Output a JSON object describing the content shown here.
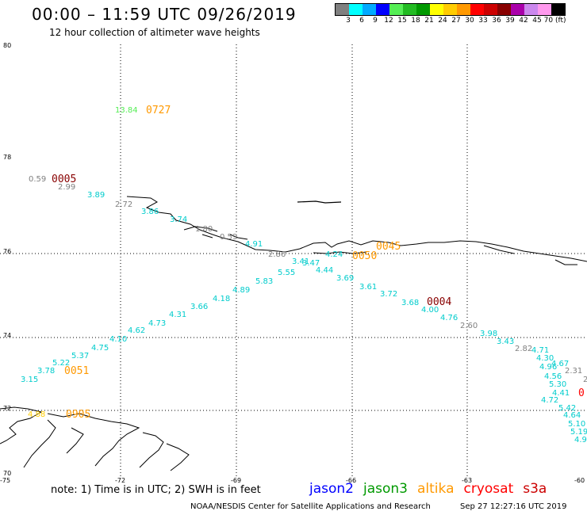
{
  "header": {
    "title": "00:00 – 11:59 UTC 09/26/2019",
    "subtitle": "12 hour collection of altimeter wave heights"
  },
  "colorbar": {
    "labels": [
      "3",
      "6",
      "9",
      "12",
      "15",
      "18",
      "21",
      "24",
      "27",
      "30",
      "33",
      "36",
      "39",
      "42",
      "45",
      "70 (ft)"
    ],
    "colors": [
      "#808080",
      "#00ffff",
      "#00aaff",
      "#0000ff",
      "#55ee55",
      "#22bb22",
      "#009900",
      "#ffff00",
      "#ffcc00",
      "#ff9900",
      "#ff0000",
      "#cc0000",
      "#880000",
      "#aa00aa",
      "#cc88ee",
      "#ff99ee",
      "#000000"
    ]
  },
  "map": {
    "lat_labels": [
      "80",
      "78",
      "76",
      "74",
      "72",
      "70"
    ],
    "lon_labels": [
      "-75",
      "-72",
      "-69",
      "-66",
      "-63",
      "-60"
    ],
    "time_labels": [
      {
        "text": "0727",
        "color": "#ff9900"
      },
      {
        "text": "0005",
        "color": "#880000"
      },
      {
        "text": "0045",
        "color": "#ff9900"
      },
      {
        "text": "0050",
        "color": "#ff9900"
      },
      {
        "text": "0004",
        "color": "#880000"
      },
      {
        "text": "0051",
        "color": "#ff9900"
      },
      {
        "text": "0905",
        "color": "#ff9900"
      },
      {
        "text": "0",
        "color": "#ff0000"
      }
    ],
    "points": [
      {
        "v": "13.84",
        "color": "#55ee55"
      },
      {
        "v": "0.59",
        "color": "#808080"
      },
      {
        "v": "2.99",
        "color": "#808080"
      },
      {
        "v": "3.89",
        "color": "#00cccc"
      },
      {
        "v": "2.72",
        "color": "#808080"
      },
      {
        "v": "3.86",
        "color": "#00cccc"
      },
      {
        "v": "3.74",
        "color": "#00cccc"
      },
      {
        "v": "1.80",
        "color": "#808080"
      },
      {
        "v": "0.59",
        "color": "#808080"
      },
      {
        "v": "4.91",
        "color": "#00cccc"
      },
      {
        "v": "2.86",
        "color": "#808080"
      },
      {
        "v": "3.41",
        "color": "#00cccc"
      },
      {
        "v": "3.47",
        "color": "#00cccc"
      },
      {
        "v": "5.55",
        "color": "#00cccc"
      },
      {
        "v": "4.24",
        "color": "#00cccc"
      },
      {
        "v": "4.44",
        "color": "#00cccc"
      },
      {
        "v": "5.83",
        "color": "#00cccc"
      },
      {
        "v": "3.69",
        "color": "#00cccc"
      },
      {
        "v": "4.89",
        "color": "#00cccc"
      },
      {
        "v": "3.61",
        "color": "#00cccc"
      },
      {
        "v": "4.18",
        "color": "#00cccc"
      },
      {
        "v": "3.72",
        "color": "#00cccc"
      },
      {
        "v": "3.66",
        "color": "#00cccc"
      },
      {
        "v": "3.68",
        "color": "#00cccc"
      },
      {
        "v": "4.31",
        "color": "#00cccc"
      },
      {
        "v": "4.00",
        "color": "#00cccc"
      },
      {
        "v": "4.73",
        "color": "#00cccc"
      },
      {
        "v": "4.76",
        "color": "#00cccc"
      },
      {
        "v": "4.62",
        "color": "#00cccc"
      },
      {
        "v": "2.60",
        "color": "#808080"
      },
      {
        "v": "4.10",
        "color": "#00cccc"
      },
      {
        "v": "3.98",
        "color": "#00cccc"
      },
      {
        "v": "4.75",
        "color": "#00cccc"
      },
      {
        "v": "3.43",
        "color": "#00cccc"
      },
      {
        "v": "5.37",
        "color": "#00cccc"
      },
      {
        "v": "2.82",
        "color": "#808080"
      },
      {
        "v": "4.71",
        "color": "#00cccc"
      },
      {
        "v": "5.22",
        "color": "#00cccc"
      },
      {
        "v": "4.30",
        "color": "#00cccc"
      },
      {
        "v": "3.78",
        "color": "#00cccc"
      },
      {
        "v": "4.67",
        "color": "#00cccc"
      },
      {
        "v": "4.96",
        "color": "#00cccc"
      },
      {
        "v": "2.31",
        "color": "#808080"
      },
      {
        "v": "3.15",
        "color": "#00cccc"
      },
      {
        "v": "4.56",
        "color": "#00cccc"
      },
      {
        "v": "5.30",
        "color": "#00cccc"
      },
      {
        "v": "4.41",
        "color": "#00cccc"
      },
      {
        "v": "4.72",
        "color": "#00cccc"
      },
      {
        "v": "5.42",
        "color": "#00cccc"
      },
      {
        "v": "4.64",
        "color": "#00cccc"
      },
      {
        "v": "5.10",
        "color": "#00cccc"
      },
      {
        "v": "5.19",
        "color": "#00cccc"
      },
      {
        "v": "4.9",
        "color": "#00cccc"
      },
      {
        "v": "4.88",
        "color": "#ffcc00"
      },
      {
        "v": "2",
        "color": "#808080"
      }
    ]
  },
  "note": "note: 1) Time is in UTC; 2) SWH is in feet",
  "legend": [
    {
      "name": "jason2",
      "color": "#0000ff"
    },
    {
      "name": "jason3",
      "color": "#009900"
    },
    {
      "name": "altika",
      "color": "#ff9900"
    },
    {
      "name": "cryosat",
      "color": "#ff0000"
    },
    {
      "name": "s3a",
      "color": "#cc0000"
    }
  ],
  "footer": {
    "left": "NOAA/NESDIS Center for Satellite Applications and Research",
    "right": "Sep 27 12:27:16 UTC 2019"
  }
}
